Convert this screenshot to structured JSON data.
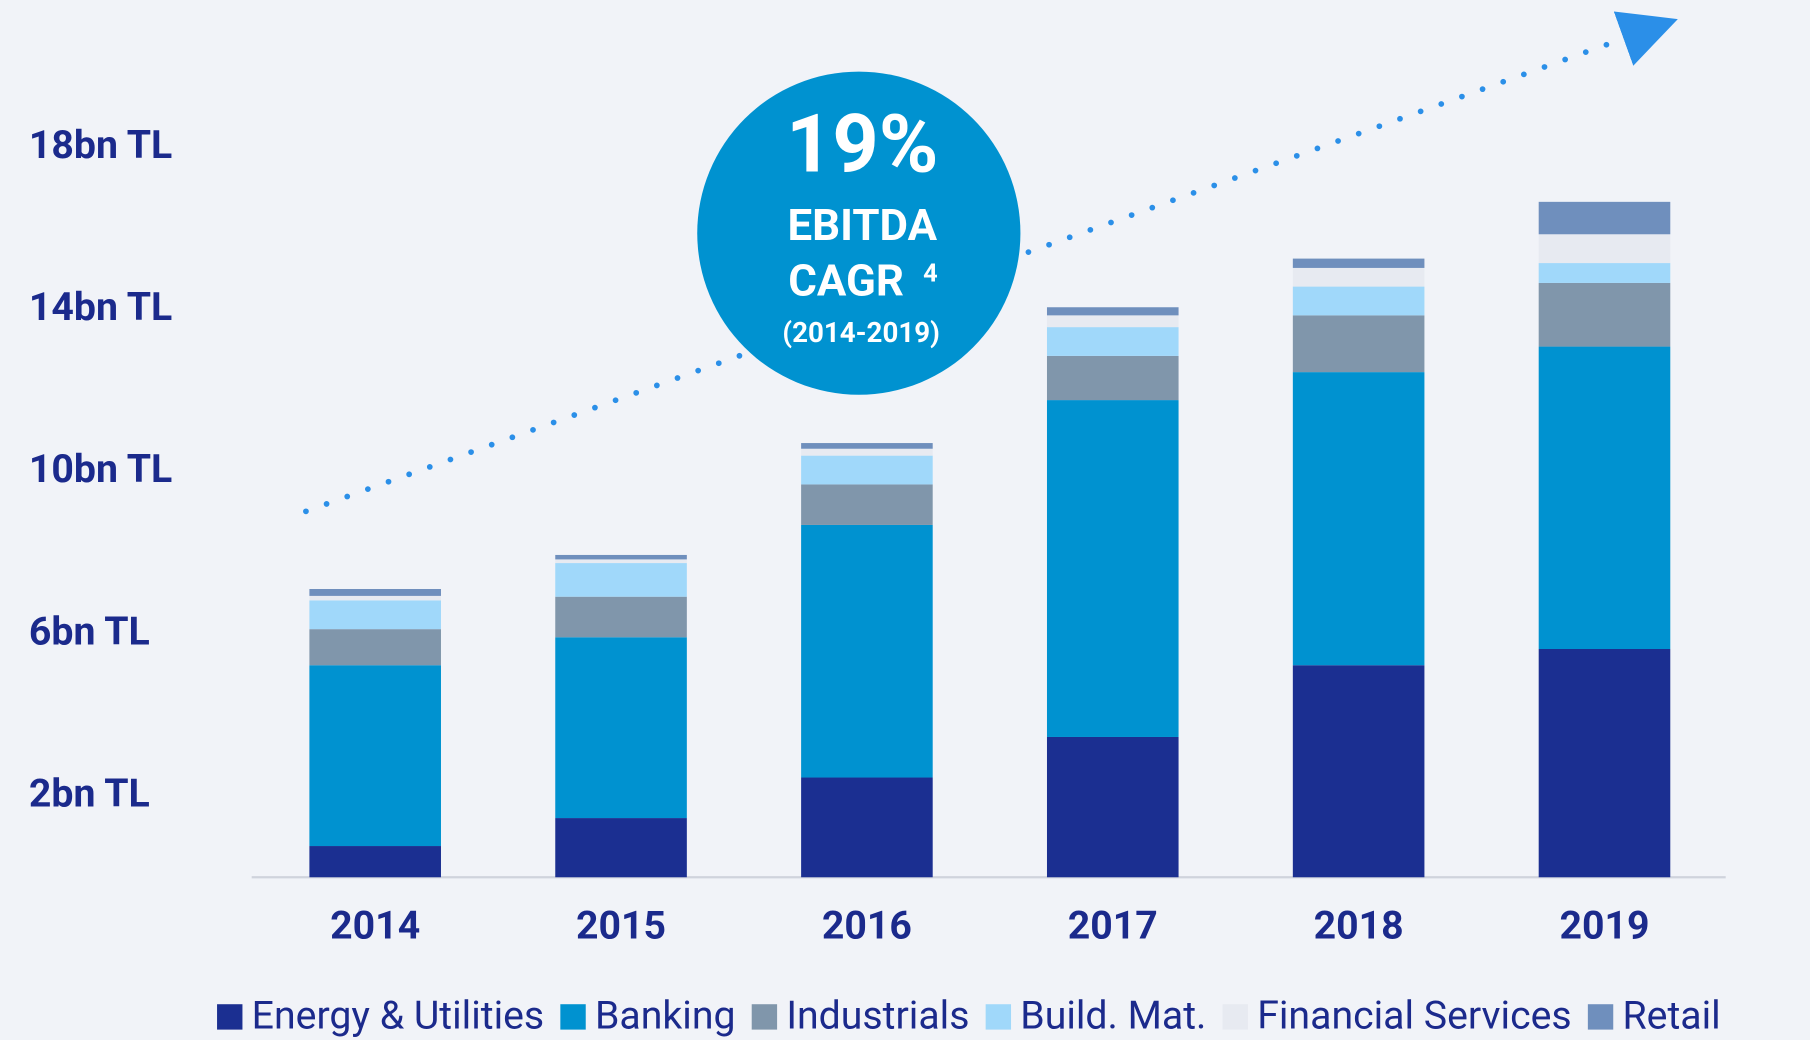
{
  "chart_data": {
    "type": "stacked_bar",
    "categories": [
      "2014",
      "2015",
      "2016",
      "2017",
      "2018",
      "2019"
    ],
    "series": [
      {
        "name": "Energy & Utilities",
        "color": "#1b2f91",
        "values": [
          0.77,
          1.46,
          2.46,
          3.46,
          5.23,
          5.63
        ]
      },
      {
        "name": "Banking",
        "color": "#0092d0",
        "values": [
          4.46,
          4.46,
          6.23,
          8.31,
          7.23,
          7.46
        ]
      },
      {
        "name": "Industrials",
        "color": "#8096ab",
        "values": [
          0.89,
          1.0,
          1.0,
          1.09,
          1.4,
          1.57
        ]
      },
      {
        "name": "Build. Mat.",
        "color": "#a0d8fa",
        "values": [
          0.71,
          0.83,
          0.71,
          0.71,
          0.71,
          0.49
        ]
      },
      {
        "name": "Financial Services",
        "color": "#e7eaf1",
        "values": [
          0.11,
          0.09,
          0.17,
          0.29,
          0.46,
          0.71
        ]
      },
      {
        "name": "Retail",
        "color": "#6f8fbd",
        "values": [
          0.17,
          0.11,
          0.14,
          0.2,
          0.23,
          0.8
        ]
      }
    ],
    "ylim": [
      0,
      20.5
    ],
    "yticks": [
      {
        "value": 2,
        "label": "2bn TL"
      },
      {
        "value": 6,
        "label": "6bn TL"
      },
      {
        "value": 10,
        "label": "10bn TL"
      },
      {
        "value": 14,
        "label": "14bn TL"
      },
      {
        "value": 18,
        "label": "18bn TL"
      }
    ],
    "annotation": {
      "value": "19%",
      "line1": "EBITDA",
      "line2": "CAGR",
      "note": "4",
      "period": "(2014-2019)"
    },
    "legend": "bottom"
  }
}
